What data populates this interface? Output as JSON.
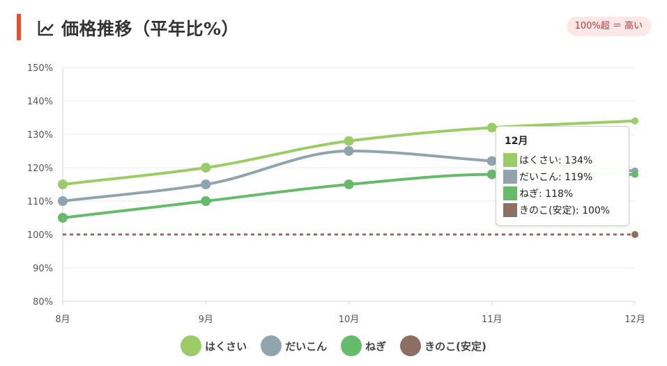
{
  "header": {
    "title": "価格推移（平年比%）",
    "icon": "line-chart-icon",
    "badge": "100%超 ＝ 高い"
  },
  "colors": {
    "accent": "#e8502a",
    "badge_bg": "#fde7e7",
    "badge_text": "#b23b3b"
  },
  "chart_data": {
    "type": "line",
    "title": "価格推移（平年比%）",
    "categories": [
      "8月",
      "9月",
      "10月",
      "11月",
      "12月"
    ],
    "y_ticks": [
      "80%",
      "90%",
      "100%",
      "110%",
      "120%",
      "130%",
      "140%",
      "150%"
    ],
    "ylim": [
      80,
      150
    ],
    "grid": true,
    "legend_position": "bottom",
    "series": [
      {
        "name": "はくさい",
        "color": "#9ccc65",
        "values": [
          115,
          120,
          128,
          132,
          134
        ],
        "dashed": false
      },
      {
        "name": "だいこん",
        "color": "#90a4ae",
        "values": [
          110,
          115,
          125,
          122,
          119
        ],
        "dashed": false
      },
      {
        "name": "ねぎ",
        "color": "#66bb6a",
        "values": [
          105,
          110,
          115,
          118,
          118
        ],
        "dashed": false
      },
      {
        "name": "きのこ(安定)",
        "color": "#8d6e63",
        "values": [
          100,
          100,
          100,
          100,
          100
        ],
        "dashed": true
      }
    ],
    "tooltip": {
      "title": "12月",
      "rows": [
        {
          "label": "はくさい: 134%",
          "color": "#9ccc65"
        },
        {
          "label": "だいこん: 119%",
          "color": "#90a4ae"
        },
        {
          "label": "ねぎ: 118%",
          "color": "#66bb6a"
        },
        {
          "label": "きのこ(安定): 100%",
          "color": "#8d6e63"
        }
      ]
    }
  }
}
